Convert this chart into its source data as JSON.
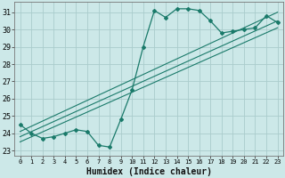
{
  "title": "",
  "xlabel": "Humidex (Indice chaleur)",
  "ylabel": "",
  "bg_color": "#cce8e8",
  "grid_color": "#aacccc",
  "line_color": "#1a7a6a",
  "xlim": [
    -0.5,
    23.5
  ],
  "ylim": [
    22.7,
    31.6
  ],
  "xticks": [
    0,
    1,
    2,
    3,
    4,
    5,
    6,
    7,
    8,
    9,
    10,
    11,
    12,
    13,
    14,
    15,
    16,
    17,
    18,
    19,
    20,
    21,
    22,
    23
  ],
  "yticks": [
    23,
    24,
    25,
    26,
    27,
    28,
    29,
    30,
    31
  ],
  "data_x": [
    0,
    1,
    2,
    3,
    4,
    5,
    6,
    7,
    8,
    9,
    10,
    11,
    12,
    13,
    14,
    15,
    16,
    17,
    18,
    19,
    20,
    21,
    22,
    23
  ],
  "data_y": [
    24.5,
    24.0,
    23.7,
    23.8,
    24.0,
    24.2,
    24.1,
    23.3,
    23.2,
    24.8,
    26.5,
    29.0,
    31.1,
    30.7,
    31.2,
    31.2,
    31.1,
    30.5,
    29.8,
    29.9,
    30.0,
    30.1,
    30.8,
    30.4
  ],
  "reg_lines": [
    [
      23.5,
      30.1
    ],
    [
      23.8,
      30.5
    ],
    [
      24.1,
      31.0
    ]
  ],
  "xlabel_fontsize": 7,
  "tick_fontsize": 6
}
